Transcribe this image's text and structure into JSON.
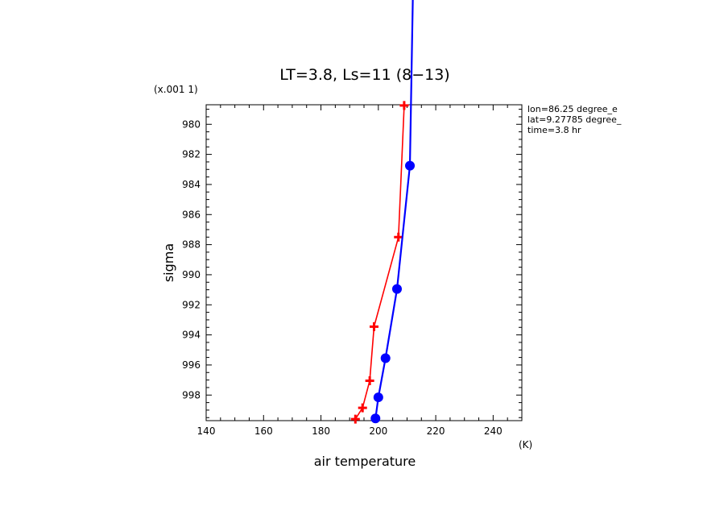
{
  "chart_data": {
    "type": "line",
    "title": "LT=3.8, Ls=11 (8−13)",
    "xlabel": "air temperature",
    "ylabel": "sigma",
    "x_unit": "(K)",
    "y_scale_note": "(x.001 1)",
    "xlim": [
      140,
      250
    ],
    "ylim": [
      999.7,
      978.7
    ],
    "y_inverted": true,
    "x_ticks": [
      140,
      160,
      180,
      200,
      220,
      240
    ],
    "y_ticks": [
      980,
      982,
      984,
      986,
      988,
      990,
      992,
      994,
      996,
      998
    ],
    "annotations": [
      "lon=86.25 degree_e",
      "lat=9.27785 degree_",
      "time=3.8 hr"
    ],
    "series": [
      {
        "color": "#ff0000",
        "marker": "plus",
        "x": [
          192.0,
          194.5,
          197.0,
          198.5,
          207.0,
          209.0
        ],
        "y": [
          999.6,
          998.85,
          997.05,
          993.45,
          987.5,
          978.75
        ]
      },
      {
        "color": "#0000ff",
        "marker": "circle",
        "x": [
          199.0,
          200.0,
          202.5,
          206.5,
          211.0
        ],
        "y": [
          999.55,
          998.15,
          995.55,
          990.95,
          982.75
        ],
        "extend_top_to_x": 212.0
      }
    ]
  }
}
